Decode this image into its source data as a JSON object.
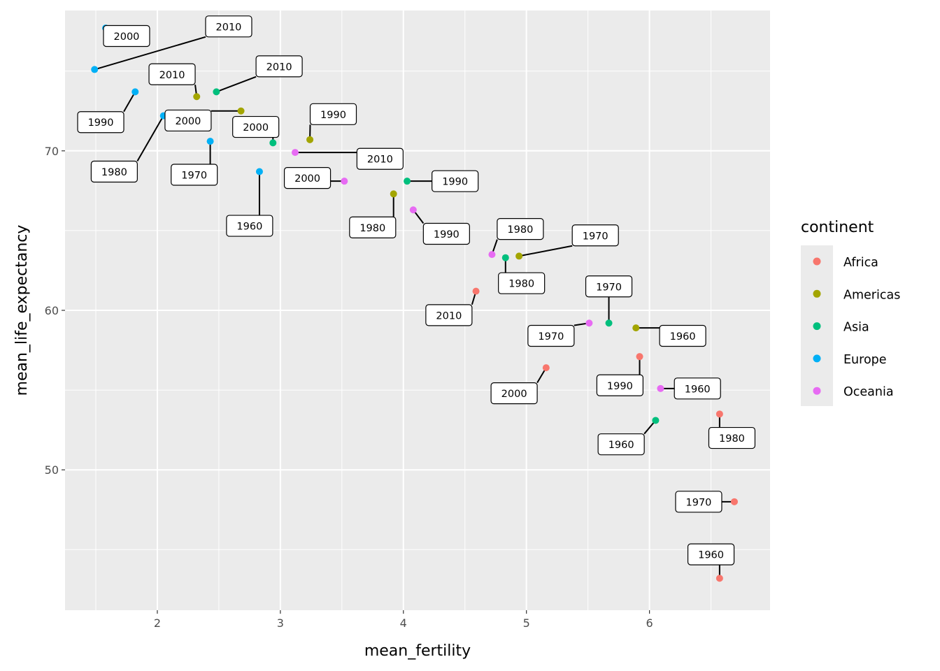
{
  "chart_data": {
    "type": "scatter",
    "xlabel": "mean_fertility",
    "ylabel": "mean_life_expectancy",
    "xlim": [
      1.25,
      6.98
    ],
    "ylim": [
      41.2,
      78.8
    ],
    "x_ticks": [
      2,
      3,
      4,
      5,
      6
    ],
    "y_ticks": [
      50,
      60,
      70
    ],
    "grid": true,
    "legend": {
      "title": "continent",
      "placement": "right",
      "entries": [
        {
          "name": "Africa",
          "color": "#F8766D"
        },
        {
          "name": "Americas",
          "color": "#A3A500"
        },
        {
          "name": "Asia",
          "color": "#00BF7D"
        },
        {
          "name": "Europe",
          "color": "#00B0F6"
        },
        {
          "name": "Oceania",
          "color": "#E76BF3"
        }
      ]
    },
    "series": [
      {
        "name": "Africa",
        "points": [
          {
            "x": 6.57,
            "y": 43.2,
            "label": "1960",
            "lx": 6.5,
            "ly": 44.7
          },
          {
            "x": 6.69,
            "y": 48.0,
            "label": "1970",
            "lx": 6.4,
            "ly": 48.0
          },
          {
            "x": 6.57,
            "y": 53.5,
            "label": "1980",
            "lx": 6.67,
            "ly": 52.0
          },
          {
            "x": 5.92,
            "y": 57.1,
            "label": "1990",
            "lx": 5.76,
            "ly": 55.3
          },
          {
            "x": 5.16,
            "y": 56.4,
            "label": "2000",
            "lx": 4.9,
            "ly": 54.8
          },
          {
            "x": 4.59,
            "y": 61.2,
            "label": "2010",
            "lx": 4.37,
            "ly": 59.7
          }
        ]
      },
      {
        "name": "Americas",
        "points": [
          {
            "x": 5.89,
            "y": 58.9,
            "label": "1960",
            "lx": 6.27,
            "ly": 58.4
          },
          {
            "x": 4.94,
            "y": 63.4,
            "label": "1970",
            "lx": 5.56,
            "ly": 64.7
          },
          {
            "x": 3.92,
            "y": 67.3,
            "label": "1980",
            "lx": 3.75,
            "ly": 65.2
          },
          {
            "x": 3.24,
            "y": 70.7,
            "label": "1990",
            "lx": 3.43,
            "ly": 72.3
          },
          {
            "x": 2.68,
            "y": 72.5,
            "label": "2000",
            "lx": 2.25,
            "ly": 71.9
          },
          {
            "x": 2.32,
            "y": 73.4,
            "label": "2010",
            "lx": 2.12,
            "ly": 74.8
          }
        ]
      },
      {
        "name": "Asia",
        "points": [
          {
            "x": 6.05,
            "y": 53.1,
            "label": "1960",
            "lx": 5.77,
            "ly": 51.6
          },
          {
            "x": 5.67,
            "y": 59.2,
            "label": "1970",
            "lx": 5.67,
            "ly": 61.5
          },
          {
            "x": 4.83,
            "y": 63.3,
            "label": "1980",
            "lx": 4.96,
            "ly": 61.7
          },
          {
            "x": 4.03,
            "y": 68.1,
            "label": "1990",
            "lx": 4.42,
            "ly": 68.1
          },
          {
            "x": 2.94,
            "y": 70.5,
            "label": "2000",
            "lx": 2.8,
            "ly": 71.5
          },
          {
            "x": 2.48,
            "y": 73.7,
            "label": "2010",
            "lx": 2.99,
            "ly": 75.3
          }
        ]
      },
      {
        "name": "Europe",
        "points": [
          {
            "x": 2.83,
            "y": 68.7,
            "label": "1960",
            "lx": 2.75,
            "ly": 65.3
          },
          {
            "x": 2.43,
            "y": 70.6,
            "label": "1970",
            "lx": 2.3,
            "ly": 68.5
          },
          {
            "x": 2.05,
            "y": 72.2,
            "label": "1980",
            "lx": 1.65,
            "ly": 68.7
          },
          {
            "x": 1.82,
            "y": 73.7,
            "label": "1990",
            "lx": 1.54,
            "ly": 71.8
          },
          {
            "x": 1.58,
            "y": 77.7,
            "label": "2000",
            "lx": 1.75,
            "ly": 77.2
          },
          {
            "x": 1.49,
            "y": 75.1,
            "label": "2010",
            "lx": 2.58,
            "ly": 77.8
          }
        ]
      },
      {
        "name": "Oceania",
        "points": [
          {
            "x": 6.09,
            "y": 55.1,
            "label": "1960",
            "lx": 6.39,
            "ly": 55.1
          },
          {
            "x": 5.51,
            "y": 59.2,
            "label": "1970",
            "lx": 5.2,
            "ly": 58.4
          },
          {
            "x": 4.72,
            "y": 63.5,
            "label": "1980",
            "lx": 4.95,
            "ly": 65.1
          },
          {
            "x": 4.08,
            "y": 66.3,
            "label": "1990",
            "lx": 4.35,
            "ly": 64.8
          },
          {
            "x": 3.52,
            "y": 68.1,
            "label": "2000",
            "lx": 3.22,
            "ly": 68.3
          },
          {
            "x": 3.12,
            "y": 69.9,
            "label": "2010",
            "lx": 3.81,
            "ly": 69.5
          }
        ]
      }
    ]
  }
}
